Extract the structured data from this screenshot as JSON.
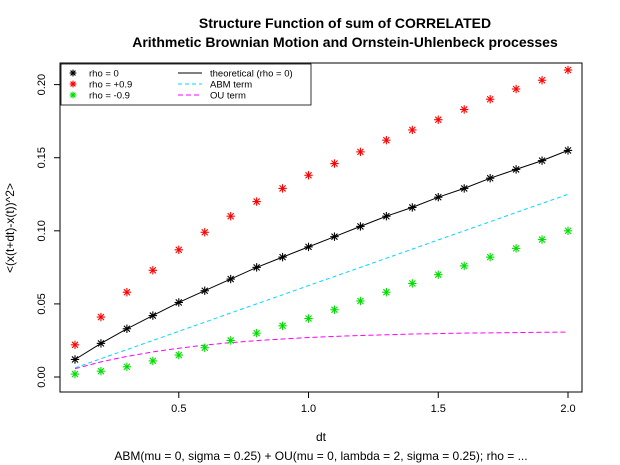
{
  "chart_data": {
    "type": "line",
    "title_line1": "Structure Function of sum of CORRELATED",
    "title_line2": "Arithmetic Brownian Motion and Ornstein-Uhlenbeck processes",
    "xlabel": "dt",
    "subtitle": "ABM(mu = 0, sigma = 0.25) + OU(mu = 0, lambda = 2, sigma = 0.25); rho = ...",
    "ylabel": "<(x(t+dt)-x(t))^2>",
    "xlim": [
      0.1,
      2.0
    ],
    "ylim": [
      0.0,
      0.21
    ],
    "xticks": [
      0.5,
      1.0,
      1.5,
      2.0
    ],
    "xtick_labels": [
      "0.5",
      "1.0",
      "1.5",
      "2.0"
    ],
    "yticks": [
      0.0,
      0.05,
      0.1,
      0.15,
      0.2
    ],
    "ytick_labels": [
      "0.00",
      "0.05",
      "0.10",
      "0.15",
      "0.20"
    ],
    "grid": false,
    "legend_position": "top-left",
    "x": [
      0.1,
      0.2,
      0.3,
      0.4,
      0.5,
      0.6,
      0.7,
      0.8,
      0.9,
      1.0,
      1.1,
      1.2,
      1.3,
      1.4,
      1.5,
      1.6,
      1.7,
      1.8,
      1.9,
      2.0
    ],
    "series": [
      {
        "name": "rho = 0",
        "kind": "points",
        "color": "#000000",
        "values": [
          0.012,
          0.023,
          0.033,
          0.042,
          0.051,
          0.059,
          0.067,
          0.075,
          0.082,
          0.089,
          0.096,
          0.103,
          0.11,
          0.116,
          0.123,
          0.129,
          0.136,
          0.142,
          0.148,
          0.155
        ]
      },
      {
        "name": "rho = +0.9",
        "kind": "points",
        "color": "#ff0000",
        "values": [
          0.022,
          0.041,
          0.058,
          0.073,
          0.087,
          0.099,
          0.11,
          0.12,
          0.129,
          0.138,
          0.146,
          0.154,
          0.162,
          0.169,
          0.176,
          0.183,
          0.19,
          0.197,
          0.203,
          0.21
        ]
      },
      {
        "name": "rho = -0.9",
        "kind": "points",
        "color": "#00dd00",
        "values": [
          0.002,
          0.004,
          0.007,
          0.011,
          0.015,
          0.02,
          0.025,
          0.03,
          0.035,
          0.04,
          0.046,
          0.052,
          0.058,
          0.064,
          0.07,
          0.076,
          0.082,
          0.088,
          0.094,
          0.1
        ]
      },
      {
        "name": "theoretical (rho = 0)",
        "kind": "line",
        "dash": "",
        "color": "#000000",
        "values": [
          0.012,
          0.023,
          0.033,
          0.042,
          0.051,
          0.059,
          0.067,
          0.075,
          0.082,
          0.089,
          0.096,
          0.103,
          0.11,
          0.116,
          0.123,
          0.129,
          0.136,
          0.142,
          0.148,
          0.155
        ]
      },
      {
        "name": "ABM term",
        "kind": "line",
        "dash": "4,3",
        "color": "#00d8ff",
        "values": [
          0.00625,
          0.0125,
          0.01875,
          0.025,
          0.03125,
          0.0375,
          0.04375,
          0.05,
          0.05625,
          0.0625,
          0.06875,
          0.075,
          0.08125,
          0.0875,
          0.09375,
          0.1,
          0.10625,
          0.1125,
          0.11875,
          0.125
        ]
      },
      {
        "name": "OU term",
        "kind": "line",
        "dash": "5,3",
        "color": "#ff00ff",
        "values": [
          0.0057,
          0.0103,
          0.0141,
          0.0172,
          0.0197,
          0.0218,
          0.0235,
          0.0249,
          0.026,
          0.027,
          0.0278,
          0.0284,
          0.0289,
          0.0294,
          0.0297,
          0.03,
          0.0302,
          0.0304,
          0.0306,
          0.0307
        ]
      }
    ]
  }
}
